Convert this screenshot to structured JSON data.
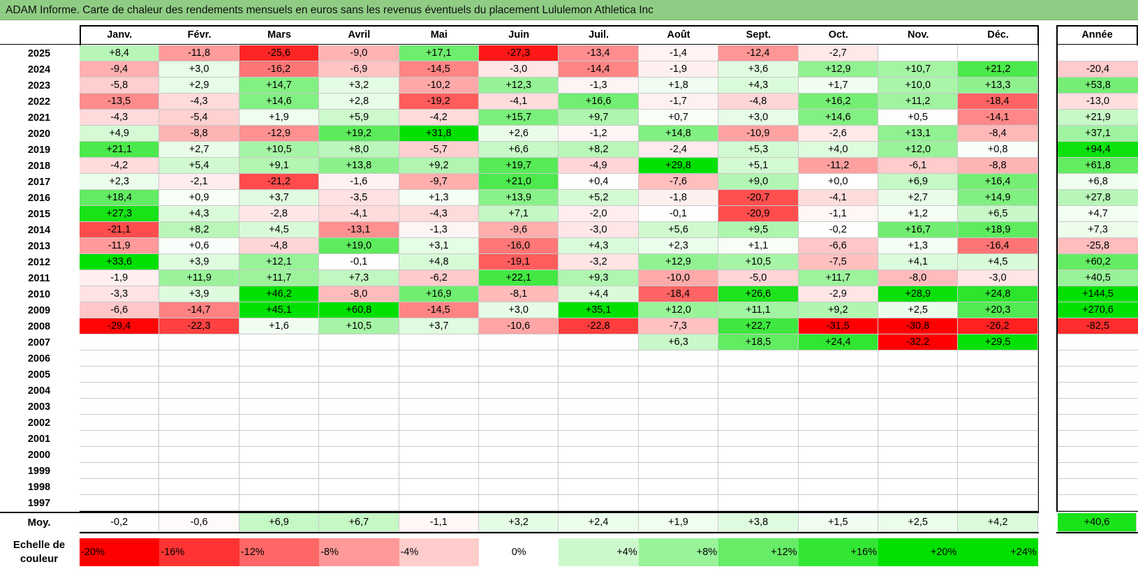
{
  "title": "ADAM Informe. Carte de chaleur des rendements mensuels en euros sans les revenus éventuels du placement Lululemon Athletica Inc",
  "months": [
    "Janv.",
    "Févr.",
    "Mars",
    "Avril",
    "Mai",
    "Juin",
    "Juil.",
    "Août",
    "Sept.",
    "Oct.",
    "Nov.",
    "Déc."
  ],
  "year_header": "Année",
  "avg_label": "Moy.",
  "scale_label_line1": "Echelle de",
  "scale_label_line2": "couleur",
  "colors": {
    "negative": "#ff0000",
    "zero": "#ffffff",
    "positive": "#00e000",
    "title_bar": "#8fcd84"
  },
  "chart_data": {
    "type": "heatmap",
    "title": "ADAM Informe. Carte de chaleur des rendements mensuels en euros sans les revenus éventuels du placement Lululemon Athletica Inc",
    "columns": [
      "Janv.",
      "Févr.",
      "Mars",
      "Avril",
      "Mai",
      "Juin",
      "Juil.",
      "Août",
      "Sept.",
      "Oct.",
      "Nov.",
      "Déc."
    ],
    "rows": [
      {
        "year": "2025",
        "values": [
          "+8,4",
          "-11,8",
          "-25,6",
          "-9,0",
          "+17,1",
          "-27,3",
          "-13,4",
          "-1,4",
          "-12,4",
          "-2,7",
          "",
          ""
        ],
        "annual": ""
      },
      {
        "year": "2024",
        "values": [
          "-9,4",
          "+3,0",
          "-16,2",
          "-6,9",
          "-14,5",
          "-3,0",
          "-14,4",
          "-1,9",
          "+3,6",
          "+12,9",
          "+10,7",
          "+21,2"
        ],
        "annual": "-20,4"
      },
      {
        "year": "2023",
        "values": [
          "-5,8",
          "+2,9",
          "+14,7",
          "+3,2",
          "-10,2",
          "+12,3",
          "-1,3",
          "+1,8",
          "+4,3",
          "+1,7",
          "+10,0",
          "+13,3"
        ],
        "annual": "+53,8"
      },
      {
        "year": "2022",
        "values": [
          "-13,5",
          "-4,3",
          "+14,6",
          "+2,8",
          "-19,2",
          "-4,1",
          "+16,6",
          "-1,7",
          "-4,8",
          "+16,2",
          "+11,2",
          "-18,4"
        ],
        "annual": "-13,0"
      },
      {
        "year": "2021",
        "values": [
          "-4,3",
          "-5,4",
          "+1,9",
          "+5,9",
          "-4,2",
          "+15,7",
          "+9,7",
          "+0,7",
          "+3,0",
          "+14,6",
          "+0,5",
          "-14,1"
        ],
        "annual": "+21,9"
      },
      {
        "year": "2020",
        "values": [
          "+4,9",
          "-8,8",
          "-12,9",
          "+19,2",
          "+31,8",
          "+2,6",
          "-1,2",
          "+14,8",
          "-10,9",
          "-2,6",
          "+13,1",
          "-8,4"
        ],
        "annual": "+37,1"
      },
      {
        "year": "2019",
        "values": [
          "+21,1",
          "+2,7",
          "+10,5",
          "+8,0",
          "-5,7",
          "+6,6",
          "+8,2",
          "-2,4",
          "+5,3",
          "+4,0",
          "+12,0",
          "+0,8"
        ],
        "annual": "+94,4"
      },
      {
        "year": "2018",
        "values": [
          "-4,2",
          "+5,4",
          "+9,1",
          "+13,8",
          "+9,2",
          "+19,7",
          "-4,9",
          "+29,8",
          "+5,1",
          "-11,2",
          "-6,1",
          "-8,8"
        ],
        "annual": "+61,8"
      },
      {
        "year": "2017",
        "values": [
          "+2,3",
          "-2,1",
          "-21,2",
          "-1,6",
          "-9,7",
          "+21,0",
          "+0,4",
          "-7,6",
          "+9,0",
          "+0,0",
          "+6,9",
          "+16,4"
        ],
        "annual": "+6,8"
      },
      {
        "year": "2016",
        "values": [
          "+18,4",
          "+0,9",
          "+3,7",
          "-3,5",
          "+1,3",
          "+13,9",
          "+5,2",
          "-1,8",
          "-20,7",
          "-4,1",
          "+2,7",
          "+14,9"
        ],
        "annual": "+27,8"
      },
      {
        "year": "2015",
        "values": [
          "+27,3",
          "+4,3",
          "-2,8",
          "-4,1",
          "-4,3",
          "+7,1",
          "-2,0",
          "-0,1",
          "-20,9",
          "-1,1",
          "+1,2",
          "+6,5"
        ],
        "annual": "+4,7"
      },
      {
        "year": "2014",
        "values": [
          "-21,1",
          "+8,2",
          "+4,5",
          "-13,1",
          "-1,3",
          "-9,6",
          "-3,0",
          "+5,6",
          "+9,5",
          "-0,2",
          "+16,7",
          "+18,9"
        ],
        "annual": "+7,3"
      },
      {
        "year": "2013",
        "values": [
          "-11,9",
          "+0,6",
          "-4,8",
          "+19,0",
          "+3,1",
          "-16,0",
          "+4,3",
          "+2,3",
          "+1,1",
          "-6,6",
          "+1,3",
          "-16,4"
        ],
        "annual": "-25,8"
      },
      {
        "year": "2012",
        "values": [
          "+33,6",
          "+3,9",
          "+12,1",
          "-0,1",
          "+4,8",
          "-19,1",
          "-3,2",
          "+12,9",
          "+10,5",
          "-7,5",
          "+4,1",
          "+4,5"
        ],
        "annual": "+60,2"
      },
      {
        "year": "2011",
        "values": [
          "-1,9",
          "+11,9",
          "+11,7",
          "+7,3",
          "-6,2",
          "+22,1",
          "+9,3",
          "-10,0",
          "-5,0",
          "+11,7",
          "-8,0",
          "-3,0"
        ],
        "annual": "+40,5"
      },
      {
        "year": "2010",
        "values": [
          "-3,3",
          "+3,9",
          "+46,2",
          "-8,0",
          "+16,9",
          "-8,1",
          "+4,4",
          "-18,4",
          "+26,6",
          "-2,9",
          "+28,9",
          "+24,8"
        ],
        "annual": "+144,5"
      },
      {
        "year": "2009",
        "values": [
          "-6,6",
          "-14,7",
          "+45,1",
          "+60,8",
          "-14,5",
          "+3,0",
          "+35,1",
          "+12,0",
          "+11,1",
          "+9,2",
          "+2,5",
          "+20,3"
        ],
        "annual": "+270,6"
      },
      {
        "year": "2008",
        "values": [
          "-29,4",
          "-22,3",
          "+1,6",
          "+10,5",
          "+3,7",
          "-10,6",
          "-22,8",
          "-7,3",
          "+22,7",
          "-31,5",
          "-30,8",
          "-26,2"
        ],
        "annual": "-82,5"
      },
      {
        "year": "2007",
        "values": [
          "",
          "",
          "",
          "",
          "",
          "",
          "",
          "+6,3",
          "+18,5",
          "+24,4",
          "-32,2",
          "+29,5"
        ],
        "annual": ""
      },
      {
        "year": "2006",
        "values": [
          "",
          "",
          "",
          "",
          "",
          "",
          "",
          "",
          "",
          "",
          "",
          ""
        ],
        "annual": ""
      },
      {
        "year": "2005",
        "values": [
          "",
          "",
          "",
          "",
          "",
          "",
          "",
          "",
          "",
          "",
          "",
          ""
        ],
        "annual": ""
      },
      {
        "year": "2004",
        "values": [
          "",
          "",
          "",
          "",
          "",
          "",
          "",
          "",
          "",
          "",
          "",
          ""
        ],
        "annual": ""
      },
      {
        "year": "2003",
        "values": [
          "",
          "",
          "",
          "",
          "",
          "",
          "",
          "",
          "",
          "",
          "",
          ""
        ],
        "annual": ""
      },
      {
        "year": "2002",
        "values": [
          "",
          "",
          "",
          "",
          "",
          "",
          "",
          "",
          "",
          "",
          "",
          ""
        ],
        "annual": ""
      },
      {
        "year": "2001",
        "values": [
          "",
          "",
          "",
          "",
          "",
          "",
          "",
          "",
          "",
          "",
          "",
          ""
        ],
        "annual": ""
      },
      {
        "year": "2000",
        "values": [
          "",
          "",
          "",
          "",
          "",
          "",
          "",
          "",
          "",
          "",
          "",
          ""
        ],
        "annual": ""
      },
      {
        "year": "1999",
        "values": [
          "",
          "",
          "",
          "",
          "",
          "",
          "",
          "",
          "",
          "",
          "",
          ""
        ],
        "annual": ""
      },
      {
        "year": "1998",
        "values": [
          "",
          "",
          "",
          "",
          "",
          "",
          "",
          "",
          "",
          "",
          "",
          ""
        ],
        "annual": ""
      },
      {
        "year": "1997",
        "values": [
          "",
          "",
          "",
          "",
          "",
          "",
          "",
          "",
          "",
          "",
          "",
          ""
        ],
        "annual": ""
      }
    ],
    "averages": [
      "-0,2",
      "-0,6",
      "+6,9",
      "+6,7",
      "-1,1",
      "+3,2",
      "+2,4",
      "+1,9",
      "+3,8",
      "+1,5",
      "+2,5",
      "+4,2"
    ],
    "annual_average": "+40,6",
    "scale": [
      {
        "label": "-20%",
        "value": -20
      },
      {
        "label": "-16%",
        "value": -16
      },
      {
        "label": "-12%",
        "value": -12
      },
      {
        "label": "-8%",
        "value": -8
      },
      {
        "label": "-4%",
        "value": -4
      },
      {
        "label": "0%",
        "value": 0
      },
      {
        "label": "+4%",
        "value": 4
      },
      {
        "label": "+8%",
        "value": 8
      },
      {
        "label": "+12%",
        "value": 12
      },
      {
        "label": "+16%",
        "value": 16
      },
      {
        "label": "+20%",
        "value": 20
      },
      {
        "label": "+24%",
        "value": 24
      }
    ]
  }
}
